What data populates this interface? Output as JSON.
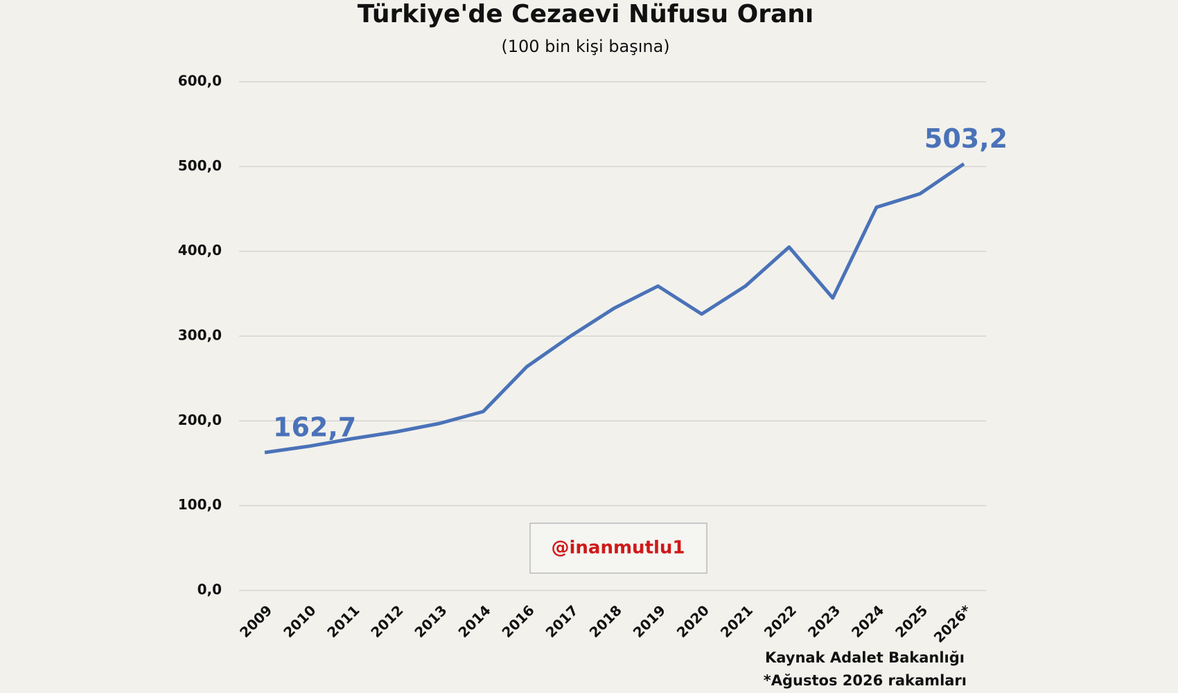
{
  "chart_data": {
    "type": "line",
    "title": "Türkiye'de Cezaevi Nüfusu Oranı",
    "subtitle": "(100 bin kişi başına)",
    "categories": [
      "2009",
      "2010",
      "2011",
      "2012",
      "2013",
      "2014",
      "2016",
      "2017",
      "2018",
      "2019",
      "2020",
      "2021",
      "2022",
      "2023",
      "2024",
      "2025",
      "2026*"
    ],
    "series": [
      {
        "name": "Cezaevi nüfusu oranı",
        "color": "#4a72b8",
        "values": [
          162.7,
          170,
          179,
          187,
          197,
          211,
          264,
          300,
          333,
          359,
          326,
          359,
          405,
          345,
          452,
          468,
          503.2
        ],
        "value_labels": [
          "162,7",
          null,
          null,
          null,
          null,
          null,
          null,
          null,
          null,
          null,
          null,
          null,
          null,
          null,
          null,
          null,
          "503,2"
        ]
      }
    ],
    "ylim": [
      0,
      600
    ],
    "yticks": [
      {
        "value": 0,
        "label": "0,0"
      },
      {
        "value": 100,
        "label": "100,0"
      },
      {
        "value": 200,
        "label": "200,0"
      },
      {
        "value": 300,
        "label": "300,0"
      },
      {
        "value": 400,
        "label": "400,0"
      },
      {
        "value": 500,
        "label": "500,0"
      },
      {
        "value": 600,
        "label": "600,0"
      }
    ],
    "grid": true,
    "annotation": "@inanmutlu1",
    "source": [
      "Kaynak Adalet Bakanlığı",
      "*Ağustos 2026 rakamları"
    ]
  }
}
